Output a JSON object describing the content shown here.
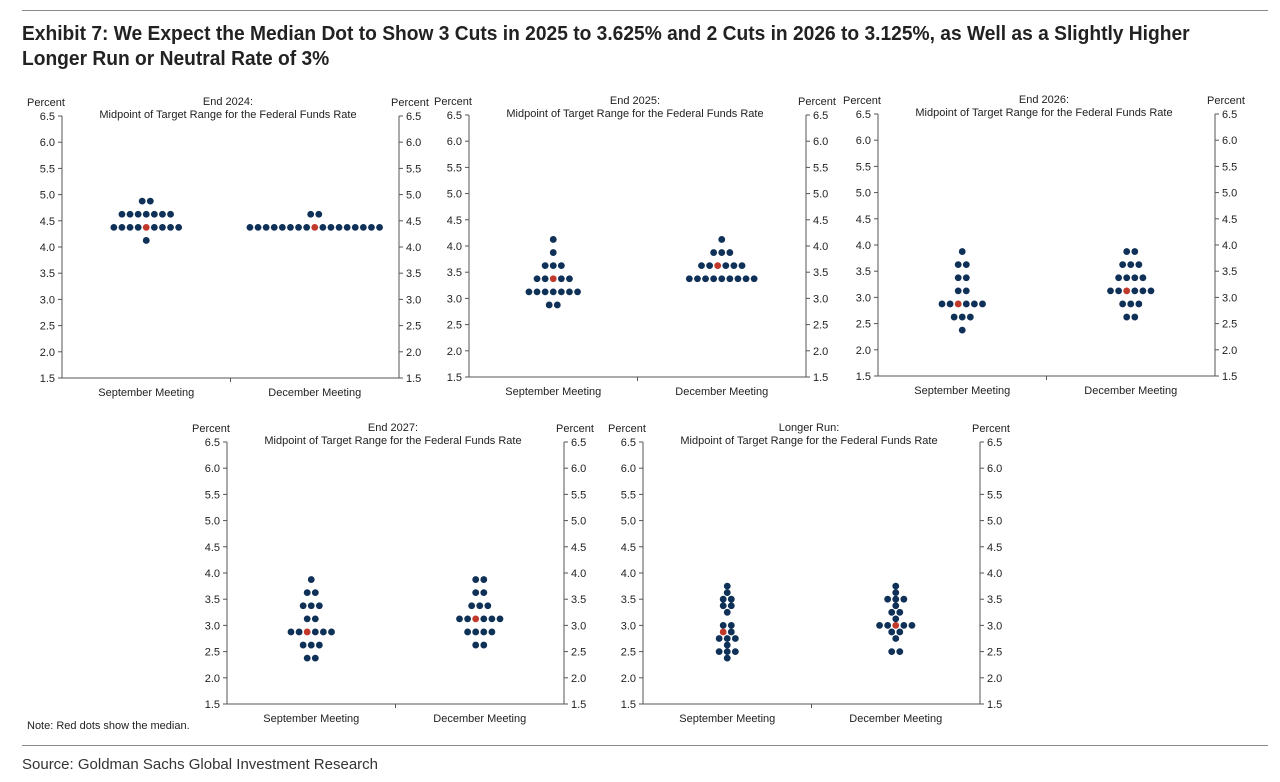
{
  "title": "Exhibit 7: We Expect the Median Dot to Show 3 Cuts in 2025 to 3.625% and 2 Cuts in 2026 to 3.125%, as Well as a Slightly Higher Longer Run or Neutral Rate of 3%",
  "note": "Note: Red dots show the median.",
  "source": "Source: Goldman Sachs Global Investment Research",
  "colors": {
    "dot": "#0f3057",
    "median": "#c0392b",
    "axis": "#555555"
  },
  "chart_data": [
    {
      "type": "scatter",
      "title": "End 2024:",
      "subtitle": "Midpoint of Target Range for the Federal Funds Rate",
      "ylabel_left": "Percent",
      "ylabel_right": "Percent",
      "ylim": [
        1.5,
        6.5
      ],
      "yticks": [
        "6.5",
        "6.0",
        "5.5",
        "5.0",
        "4.5",
        "4.0",
        "3.5",
        "3.0",
        "2.5",
        "2.0",
        "1.5"
      ],
      "categories": [
        "September Meeting",
        "December Meeting"
      ],
      "series": [
        {
          "category": "September Meeting",
          "median": 4.375,
          "levels": [
            {
              "rate": 4.875,
              "count": 2
            },
            {
              "rate": 4.625,
              "count": 7
            },
            {
              "rate": 4.375,
              "count": 9
            },
            {
              "rate": 4.125,
              "count": 1
            }
          ]
        },
        {
          "category": "December Meeting",
          "median": 4.375,
          "levels": [
            {
              "rate": 4.625,
              "count": 2
            },
            {
              "rate": 4.375,
              "count": 17
            }
          ]
        }
      ]
    },
    {
      "type": "scatter",
      "title": "End 2025:",
      "subtitle": "Midpoint of Target Range for the Federal Funds Rate",
      "ylabel_left": "Percent",
      "ylabel_right": "Percent",
      "ylim": [
        1.5,
        6.5
      ],
      "yticks": [
        "6.5",
        "6.0",
        "5.5",
        "5.0",
        "4.5",
        "4.0",
        "3.5",
        "3.0",
        "2.5",
        "2.0",
        "1.5"
      ],
      "categories": [
        "September Meeting",
        "December Meeting"
      ],
      "series": [
        {
          "category": "September Meeting",
          "median": 3.375,
          "levels": [
            {
              "rate": 4.125,
              "count": 1
            },
            {
              "rate": 3.875,
              "count": 1
            },
            {
              "rate": 3.625,
              "count": 3
            },
            {
              "rate": 3.375,
              "count": 5
            },
            {
              "rate": 3.125,
              "count": 7
            },
            {
              "rate": 2.875,
              "count": 2
            }
          ]
        },
        {
          "category": "December Meeting",
          "median": 3.625,
          "levels": [
            {
              "rate": 4.125,
              "count": 1
            },
            {
              "rate": 3.875,
              "count": 3
            },
            {
              "rate": 3.625,
              "count": 6
            },
            {
              "rate": 3.375,
              "count": 9
            }
          ]
        }
      ]
    },
    {
      "type": "scatter",
      "title": "End 2026:",
      "subtitle": "Midpoint of Target Range for the Federal Funds Rate",
      "ylabel_left": "Percent",
      "ylabel_right": "Percent",
      "ylim": [
        1.5,
        6.5
      ],
      "yticks": [
        "6.5",
        "6.0",
        "5.5",
        "5.0",
        "4.5",
        "4.0",
        "3.5",
        "3.0",
        "2.5",
        "2.0",
        "1.5"
      ],
      "categories": [
        "September Meeting",
        "December Meeting"
      ],
      "series": [
        {
          "category": "September Meeting",
          "median": 2.875,
          "levels": [
            {
              "rate": 3.875,
              "count": 1
            },
            {
              "rate": 3.625,
              "count": 2
            },
            {
              "rate": 3.375,
              "count": 2
            },
            {
              "rate": 3.125,
              "count": 2
            },
            {
              "rate": 2.875,
              "count": 6
            },
            {
              "rate": 2.625,
              "count": 3
            },
            {
              "rate": 2.375,
              "count": 1
            }
          ]
        },
        {
          "category": "December Meeting",
          "median": 3.125,
          "levels": [
            {
              "rate": 3.875,
              "count": 2
            },
            {
              "rate": 3.625,
              "count": 3
            },
            {
              "rate": 3.375,
              "count": 4
            },
            {
              "rate": 3.125,
              "count": 6
            },
            {
              "rate": 2.875,
              "count": 3
            },
            {
              "rate": 2.625,
              "count": 2
            }
          ]
        }
      ]
    },
    {
      "type": "scatter",
      "title": "End 2027:",
      "subtitle": "Midpoint of Target Range for the Federal Funds Rate",
      "ylabel_left": "Percent",
      "ylabel_right": "Percent",
      "ylim": [
        1.5,
        6.5
      ],
      "yticks": [
        "6.5",
        "6.0",
        "5.5",
        "5.0",
        "4.5",
        "4.0",
        "3.5",
        "3.0",
        "2.5",
        "2.0",
        "1.5"
      ],
      "categories": [
        "September Meeting",
        "December Meeting"
      ],
      "series": [
        {
          "category": "September Meeting",
          "median": 2.875,
          "levels": [
            {
              "rate": 3.875,
              "count": 1
            },
            {
              "rate": 3.625,
              "count": 2
            },
            {
              "rate": 3.375,
              "count": 3
            },
            {
              "rate": 3.125,
              "count": 2
            },
            {
              "rate": 2.875,
              "count": 6
            },
            {
              "rate": 2.625,
              "count": 3
            },
            {
              "rate": 2.375,
              "count": 2
            }
          ]
        },
        {
          "category": "December Meeting",
          "median": 3.125,
          "levels": [
            {
              "rate": 3.875,
              "count": 2
            },
            {
              "rate": 3.625,
              "count": 2
            },
            {
              "rate": 3.375,
              "count": 3
            },
            {
              "rate": 3.125,
              "count": 6
            },
            {
              "rate": 2.875,
              "count": 4
            },
            {
              "rate": 2.625,
              "count": 2
            }
          ]
        }
      ]
    },
    {
      "type": "scatter",
      "title": "Longer Run:",
      "subtitle": "Midpoint of Target Range for the Federal Funds Rate",
      "ylabel_left": "Percent",
      "ylabel_right": "Percent",
      "ylim": [
        1.5,
        6.5
      ],
      "yticks": [
        "6.5",
        "6.0",
        "5.5",
        "5.0",
        "4.5",
        "4.0",
        "3.5",
        "3.0",
        "2.5",
        "2.0",
        "1.5"
      ],
      "categories": [
        "September Meeting",
        "December Meeting"
      ],
      "series": [
        {
          "category": "September Meeting",
          "median": 2.875,
          "levels": [
            {
              "rate": 3.75,
              "count": 1
            },
            {
              "rate": 3.625,
              "count": 1
            },
            {
              "rate": 3.5,
              "count": 2
            },
            {
              "rate": 3.375,
              "count": 2
            },
            {
              "rate": 3.25,
              "count": 1
            },
            {
              "rate": 3.0,
              "count": 2
            },
            {
              "rate": 2.875,
              "count": 2
            },
            {
              "rate": 2.75,
              "count": 3
            },
            {
              "rate": 2.625,
              "count": 1
            },
            {
              "rate": 2.5,
              "count": 3
            },
            {
              "rate": 2.375,
              "count": 1
            }
          ]
        },
        {
          "category": "December Meeting",
          "median": 3.0,
          "levels": [
            {
              "rate": 3.75,
              "count": 1
            },
            {
              "rate": 3.625,
              "count": 1
            },
            {
              "rate": 3.5,
              "count": 3
            },
            {
              "rate": 3.375,
              "count": 1
            },
            {
              "rate": 3.25,
              "count": 2
            },
            {
              "rate": 3.125,
              "count": 1
            },
            {
              "rate": 3.0,
              "count": 5
            },
            {
              "rate": 2.875,
              "count": 2
            },
            {
              "rate": 2.75,
              "count": 1
            },
            {
              "rate": 2.5,
              "count": 2
            }
          ]
        }
      ]
    }
  ]
}
